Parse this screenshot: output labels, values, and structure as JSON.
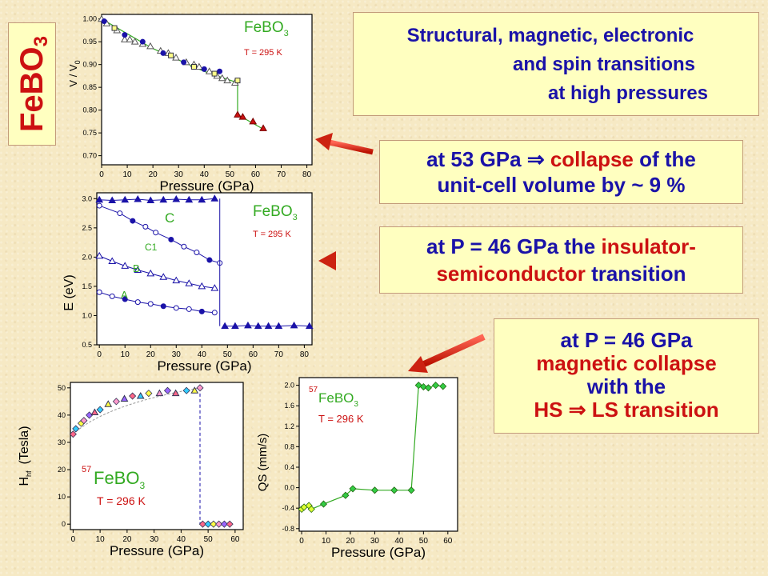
{
  "title": {
    "formula": "FeBO",
    "sub": "3"
  },
  "callouts": {
    "headline": {
      "line1": "Structural, magnetic, electronic",
      "line2": "and spin transitions",
      "line3": "at high pressures"
    },
    "volume": {
      "p1": "at 53 GPa ",
      "arrow": "⇒",
      "p2": " ",
      "p3": "collapse",
      "p4": " of the",
      "line2": "unit-cell volume by ~ 9 %"
    },
    "insulator": {
      "p1": "at P = 46 GPa the ",
      "p2": "insulator-",
      "p3": "semiconductor",
      "p4": " transition"
    },
    "magnetic": {
      "line1": "at P = 46 GPa",
      "p2": "magnetic collapse",
      "line3": "with the",
      "p4": "HS ",
      "arrow": "⇒",
      "p5": " LS transition"
    }
  },
  "colors": {
    "red": "#cc1111",
    "blue": "#1a12a8",
    "green": "#33aa22",
    "box": "#ffffc0"
  },
  "chart_data": [
    {
      "type": "scatter",
      "compound": "FeBO",
      "compound_sub": "3",
      "temperature": "T = 295 K",
      "xlabel": "Pressure  (GPa)",
      "ylabel": "V / V",
      "ylabel_sub": "0",
      "xlim": [
        0,
        82
      ],
      "ylim": [
        0.68,
        1.01
      ],
      "xticks": [
        "0",
        "10",
        "20",
        "30",
        "40",
        "50",
        "60",
        "70",
        "80"
      ],
      "yticks": [
        "0.70",
        "0.75",
        "0.80",
        "0.85",
        "0.90",
        "0.95",
        "1.00"
      ],
      "series": [
        {
          "values": [
            [
              0,
              1.0
            ],
            [
              2,
              0.99
            ],
            [
              6,
              0.975
            ],
            [
              9,
              0.955
            ],
            [
              11,
              0.955
            ],
            [
              13,
              0.95
            ],
            [
              16,
              0.945
            ],
            [
              19,
              0.94
            ],
            [
              23,
              0.93
            ],
            [
              26,
              0.925
            ],
            [
              29,
              0.915
            ],
            [
              33,
              0.905
            ],
            [
              36,
              0.9
            ],
            [
              38,
              0.895
            ],
            [
              42,
              0.885
            ],
            [
              45,
              0.875
            ],
            [
              47,
              0.87
            ],
            [
              49,
              0.865
            ],
            [
              52,
              0.86
            ]
          ]
        },
        {
          "values": [
            [
              1,
              0.995
            ],
            [
              9,
              0.965
            ],
            [
              16,
              0.95
            ],
            [
              24,
              0.925
            ],
            [
              32,
              0.905
            ],
            [
              40,
              0.89
            ],
            [
              46,
              0.885
            ]
          ]
        },
        {
          "values": [
            [
              5,
              0.98
            ],
            [
              27,
              0.92
            ],
            [
              36,
              0.895
            ],
            [
              44,
              0.88
            ],
            [
              53,
              0.865
            ]
          ]
        },
        {
          "values": [
            [
              53,
              0.79
            ],
            [
              55,
              0.785
            ],
            [
              59,
              0.775
            ],
            [
              63,
              0.76
            ]
          ]
        }
      ],
      "fit_line": [
        [
          0,
          1.0
        ],
        [
          20,
          0.935
        ],
        [
          40,
          0.885
        ],
        [
          53,
          0.86
        ],
        [
          53,
          0.79
        ],
        [
          64,
          0.755
        ]
      ]
    },
    {
      "type": "line",
      "compound": "FeBO",
      "compound_sub": "3",
      "temperature": "T = 295 K",
      "xlabel": "Pressure  (GPa)",
      "ylabel": "E  (eV)",
      "xlim": [
        -1,
        83
      ],
      "ylim": [
        0.5,
        3.1
      ],
      "xticks": [
        "0",
        "10",
        "20",
        "30",
        "40",
        "50",
        "60",
        "70",
        "80"
      ],
      "yticks": [
        "0.5",
        "1.0",
        "1.5",
        "2.0",
        "2.5",
        "3.0"
      ],
      "annotations": [
        "C",
        "C1",
        "B",
        "A"
      ],
      "series": [
        {
          "name": "C",
          "values": [
            [
              0,
              2.98
            ],
            [
              5,
              2.97
            ],
            [
              10,
              2.98
            ],
            [
              15,
              2.99
            ],
            [
              20,
              2.97
            ],
            [
              25,
              2.98
            ],
            [
              30,
              2.99
            ],
            [
              35,
              2.98
            ],
            [
              40,
              2.98
            ],
            [
              45,
              3.0
            ]
          ]
        },
        {
          "name": "C1",
          "values": [
            [
              0,
              2.88
            ],
            [
              8,
              2.75
            ],
            [
              13,
              2.62
            ],
            [
              18,
              2.52
            ],
            [
              22,
              2.42
            ],
            [
              28,
              2.3
            ],
            [
              33,
              2.18
            ],
            [
              38,
              2.08
            ],
            [
              43,
              1.95
            ],
            [
              47,
              1.9
            ]
          ]
        },
        {
          "name": "B",
          "values": [
            [
              0,
              2.02
            ],
            [
              5,
              1.93
            ],
            [
              10,
              1.85
            ],
            [
              15,
              1.78
            ],
            [
              20,
              1.72
            ],
            [
              25,
              1.66
            ],
            [
              30,
              1.6
            ],
            [
              35,
              1.55
            ],
            [
              40,
              1.5
            ],
            [
              45,
              1.47
            ]
          ]
        },
        {
          "name": "A",
          "values": [
            [
              0,
              1.4
            ],
            [
              5,
              1.33
            ],
            [
              10,
              1.28
            ],
            [
              15,
              1.23
            ],
            [
              20,
              1.2
            ],
            [
              25,
              1.16
            ],
            [
              30,
              1.13
            ],
            [
              35,
              1.11
            ],
            [
              40,
              1.07
            ],
            [
              45,
              1.05
            ]
          ]
        },
        {
          "name": "",
          "values": [
            [
              49,
              0.82
            ],
            [
              53,
              0.82
            ],
            [
              58,
              0.83
            ],
            [
              62,
              0.82
            ],
            [
              66,
              0.82
            ],
            [
              70,
              0.82
            ],
            [
              76,
              0.83
            ],
            [
              82,
              0.82
            ]
          ]
        }
      ]
    },
    {
      "type": "scatter",
      "compound": "FeBO",
      "compound_sub": "3",
      "isotope": "57",
      "temperature": "T = 296 K",
      "xlabel": "Pressure  (GPa)",
      "ylabel": "H",
      "ylabel_sub": "hf",
      "ylabel_unit": "(Tesla)",
      "xlim": [
        -1,
        63
      ],
      "ylim": [
        -2,
        52
      ],
      "xticks": [
        "0",
        "10",
        "20",
        "30",
        "40",
        "50",
        "60"
      ],
      "yticks": [
        "0",
        "10",
        "20",
        "30",
        "40",
        "50"
      ],
      "series": [
        {
          "values": [
            [
              0,
              33
            ],
            [
              1,
              35
            ],
            [
              3,
              37
            ],
            [
              4,
              38
            ],
            [
              6,
              40
            ],
            [
              8,
              41
            ],
            [
              10,
              42
            ],
            [
              13,
              44
            ],
            [
              16,
              45
            ],
            [
              19,
              46
            ],
            [
              22,
              47
            ],
            [
              25,
              47
            ],
            [
              28,
              48
            ],
            [
              32,
              48
            ],
            [
              35,
              49
            ],
            [
              38,
              48
            ],
            [
              42,
              49
            ],
            [
              45,
              49
            ],
            [
              47,
              50
            ]
          ]
        },
        {
          "values": [
            [
              48,
              0
            ],
            [
              50,
              0
            ],
            [
              52,
              0
            ],
            [
              54,
              0
            ],
            [
              56,
              0
            ],
            [
              58,
              0
            ]
          ]
        }
      ],
      "transition_pressure": 47
    },
    {
      "type": "line",
      "compound": "FeBO",
      "compound_sub": "3",
      "isotope": "57",
      "temperature": "T = 296 K",
      "xlabel": "Pressure  (GPa)",
      "ylabel": "QS  (mm/s)",
      "xlim": [
        -1,
        64
      ],
      "ylim": [
        -0.85,
        2.15
      ],
      "xticks": [
        "0",
        "10",
        "20",
        "30",
        "40",
        "50",
        "60"
      ],
      "yticks": [
        "-0.8",
        "-0.4",
        "0.0",
        "0.4",
        "0.8",
        "1.2",
        "1.6",
        "2.0"
      ],
      "series": [
        {
          "values": [
            [
              0,
              -0.42
            ],
            [
              1,
              -0.38
            ],
            [
              3,
              -0.35
            ],
            [
              4,
              -0.42
            ],
            [
              9,
              -0.32
            ],
            [
              18,
              -0.15
            ],
            [
              21,
              -0.02
            ],
            [
              30,
              -0.05
            ],
            [
              38,
              -0.05
            ],
            [
              45,
              -0.05
            ],
            [
              48,
              2.0
            ],
            [
              50,
              1.97
            ],
            [
              52,
              1.95
            ],
            [
              55,
              2.0
            ],
            [
              58,
              1.98
            ]
          ]
        }
      ]
    }
  ]
}
